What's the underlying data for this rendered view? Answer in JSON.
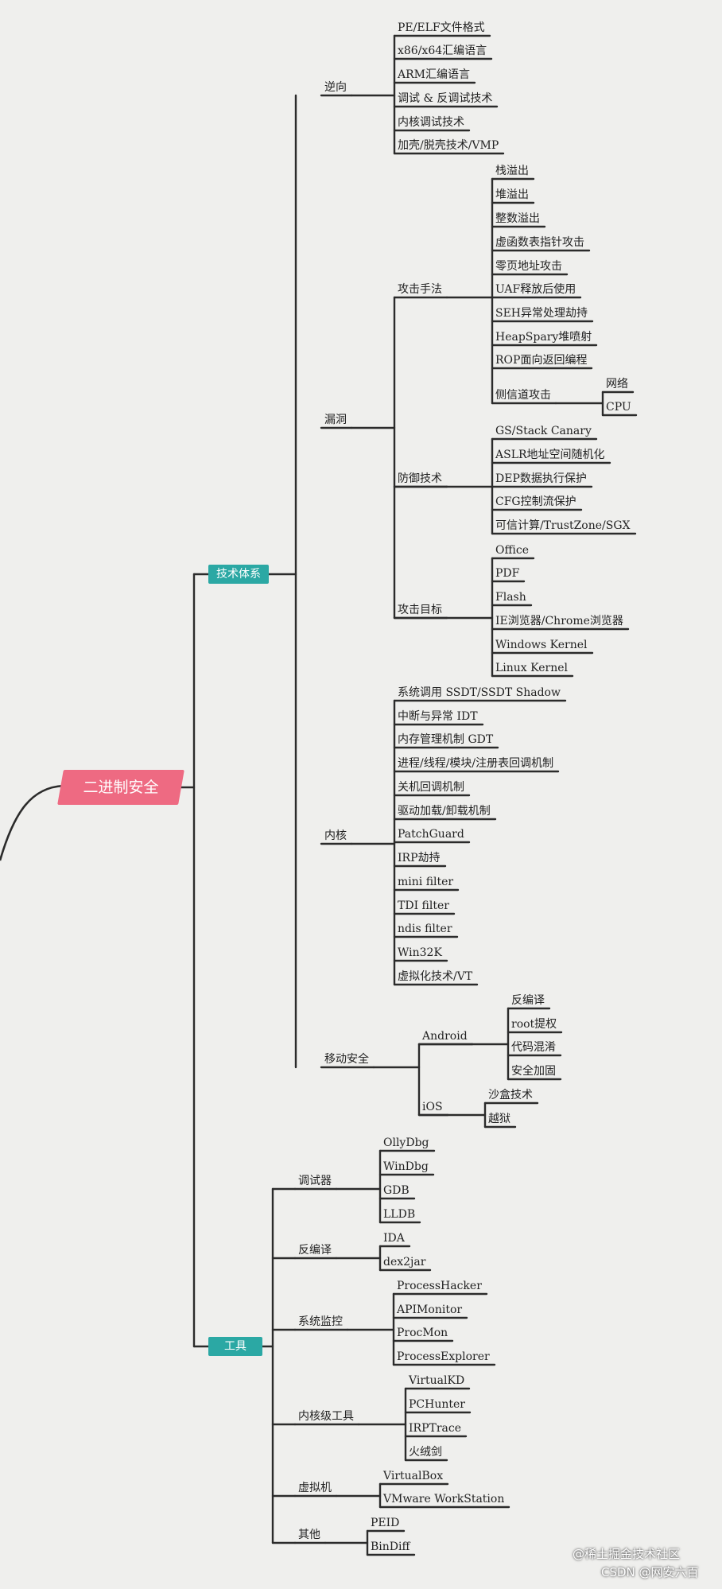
{
  "root": "二进制安全",
  "categories": {
    "tech": "技术体系",
    "tools": "工具"
  },
  "tech": {
    "reverse": {
      "label": "逆向",
      "items": [
        "PE/ELF文件格式",
        "x86/x64汇编语言",
        "ARM汇编语言",
        "调试 & 反调试技术",
        "内核调试技术",
        "加壳/脱壳技术/VMP"
      ]
    },
    "vuln": {
      "label": "漏洞",
      "attack": {
        "label": "攻击手法",
        "items": [
          "栈溢出",
          "堆溢出",
          "整数溢出",
          "虚函数表指针攻击",
          "零页地址攻击",
          "UAF释放后使用",
          "SEH异常处理劫持",
          "HeapSpary堆喷射",
          "ROP面向返回编程",
          "侧信道攻击"
        ],
        "side_channel": [
          "网络",
          "CPU"
        ]
      },
      "defense": {
        "label": "防御技术",
        "items": [
          "GS/Stack Canary",
          "ASLR地址空间随机化",
          "DEP数据执行保护",
          "CFG控制流保护",
          "可信计算/TrustZone/SGX"
        ]
      },
      "targets": {
        "label": "攻击目标",
        "items": [
          "Office",
          "PDF",
          "Flash",
          "IE浏览器/Chrome浏览器",
          "Windows Kernel",
          "Linux Kernel"
        ]
      }
    },
    "kernel": {
      "label": "内核",
      "items": [
        "系统调用 SSDT/SSDT Shadow",
        "中断与异常 IDT",
        "内存管理机制 GDT",
        "进程/线程/模块/注册表回调机制",
        "关机回调机制",
        "驱动加载/卸载机制",
        "PatchGuard",
        "IRP劫持",
        "mini filter",
        "TDI filter",
        "ndis filter",
        "Win32K",
        "虚拟化技术/VT"
      ]
    },
    "mobile": {
      "label": "移动安全",
      "android": {
        "label": "Android",
        "items": [
          "反编译",
          "root提权",
          "代码混淆",
          "安全加固"
        ]
      },
      "ios": {
        "label": "iOS",
        "items": [
          "沙盒技术",
          "越狱"
        ]
      }
    }
  },
  "tools": {
    "debuggers": {
      "label": "调试器",
      "items": [
        "OllyDbg",
        "WinDbg",
        "GDB",
        "LLDB"
      ]
    },
    "decompile": {
      "label": "反编译",
      "items": [
        "IDA",
        "dex2jar"
      ]
    },
    "monitor": {
      "label": "系统监控",
      "items": [
        "ProcessHacker",
        "APIMonitor",
        "ProcMon",
        "ProcessExplorer"
      ]
    },
    "kernel_tools": {
      "label": "内核级工具",
      "items": [
        "VirtualKD",
        "PCHunter",
        "IRPTrace",
        "火绒剑"
      ]
    },
    "vm": {
      "label": "虚拟机",
      "items": [
        "VirtualBox",
        "VMware WorkStation"
      ]
    },
    "other": {
      "label": "其他",
      "items": [
        "PEID",
        "BinDiff"
      ]
    }
  },
  "watermarks": [
    "@稀土掘金技术社区",
    "CSDN @网安六百"
  ]
}
